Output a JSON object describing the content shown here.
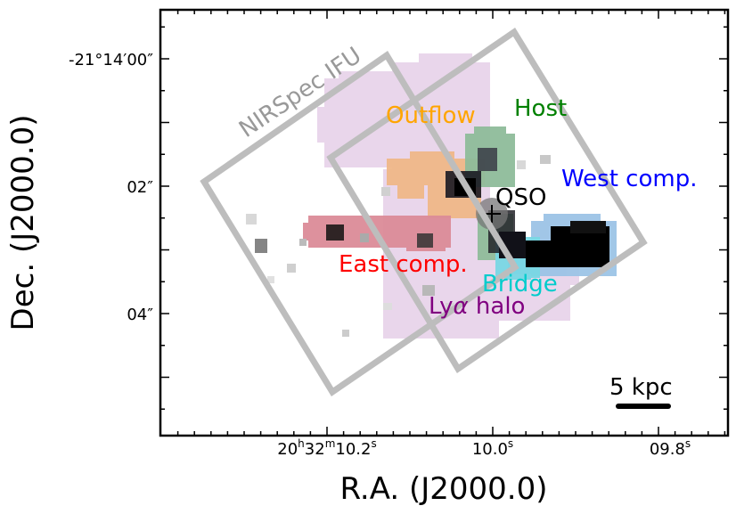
{
  "axes": {
    "xlabel": "R.A. (J2000.0)",
    "ylabel": "Dec. (J2000.0)",
    "x_ticks": [
      {
        "main": "20",
        "sup1": "h",
        "mid": "32",
        "sup2": "m",
        "tail": "10.2",
        "sup3": "s"
      },
      {
        "main": "10.0",
        "sup3": "s"
      },
      {
        "main": "09.8",
        "sup3": "s"
      }
    ],
    "y_ticks": [
      "-21°14′00″",
      "02″",
      "04″"
    ]
  },
  "labels": {
    "nirspec": "NIRSpec IFU",
    "outflow": "Outflow",
    "host": "Host",
    "west": "West comp.",
    "qso": "QSO",
    "east": "East comp.",
    "bridge": "Bridge",
    "lya_prefix": "Ly",
    "lya_alpha": "α",
    "lya_suffix": " halo",
    "scalebar": "5 kpc"
  },
  "colors": {
    "nirspec": "#999999",
    "outflow": "#ffa500",
    "host": "#008000",
    "west": "#0000ff",
    "qso": "#000000",
    "east": "#ff0000",
    "bridge": "#00cccc",
    "lya": "#800080",
    "halo_fill": "#e8d4ea",
    "outflow_fill": "#f0b888",
    "east_fill": "#dc8c98",
    "host_fill": "#8fbc9a",
    "west_fill": "#9cc4e6",
    "bridge_fill": "#7ad8e4"
  }
}
